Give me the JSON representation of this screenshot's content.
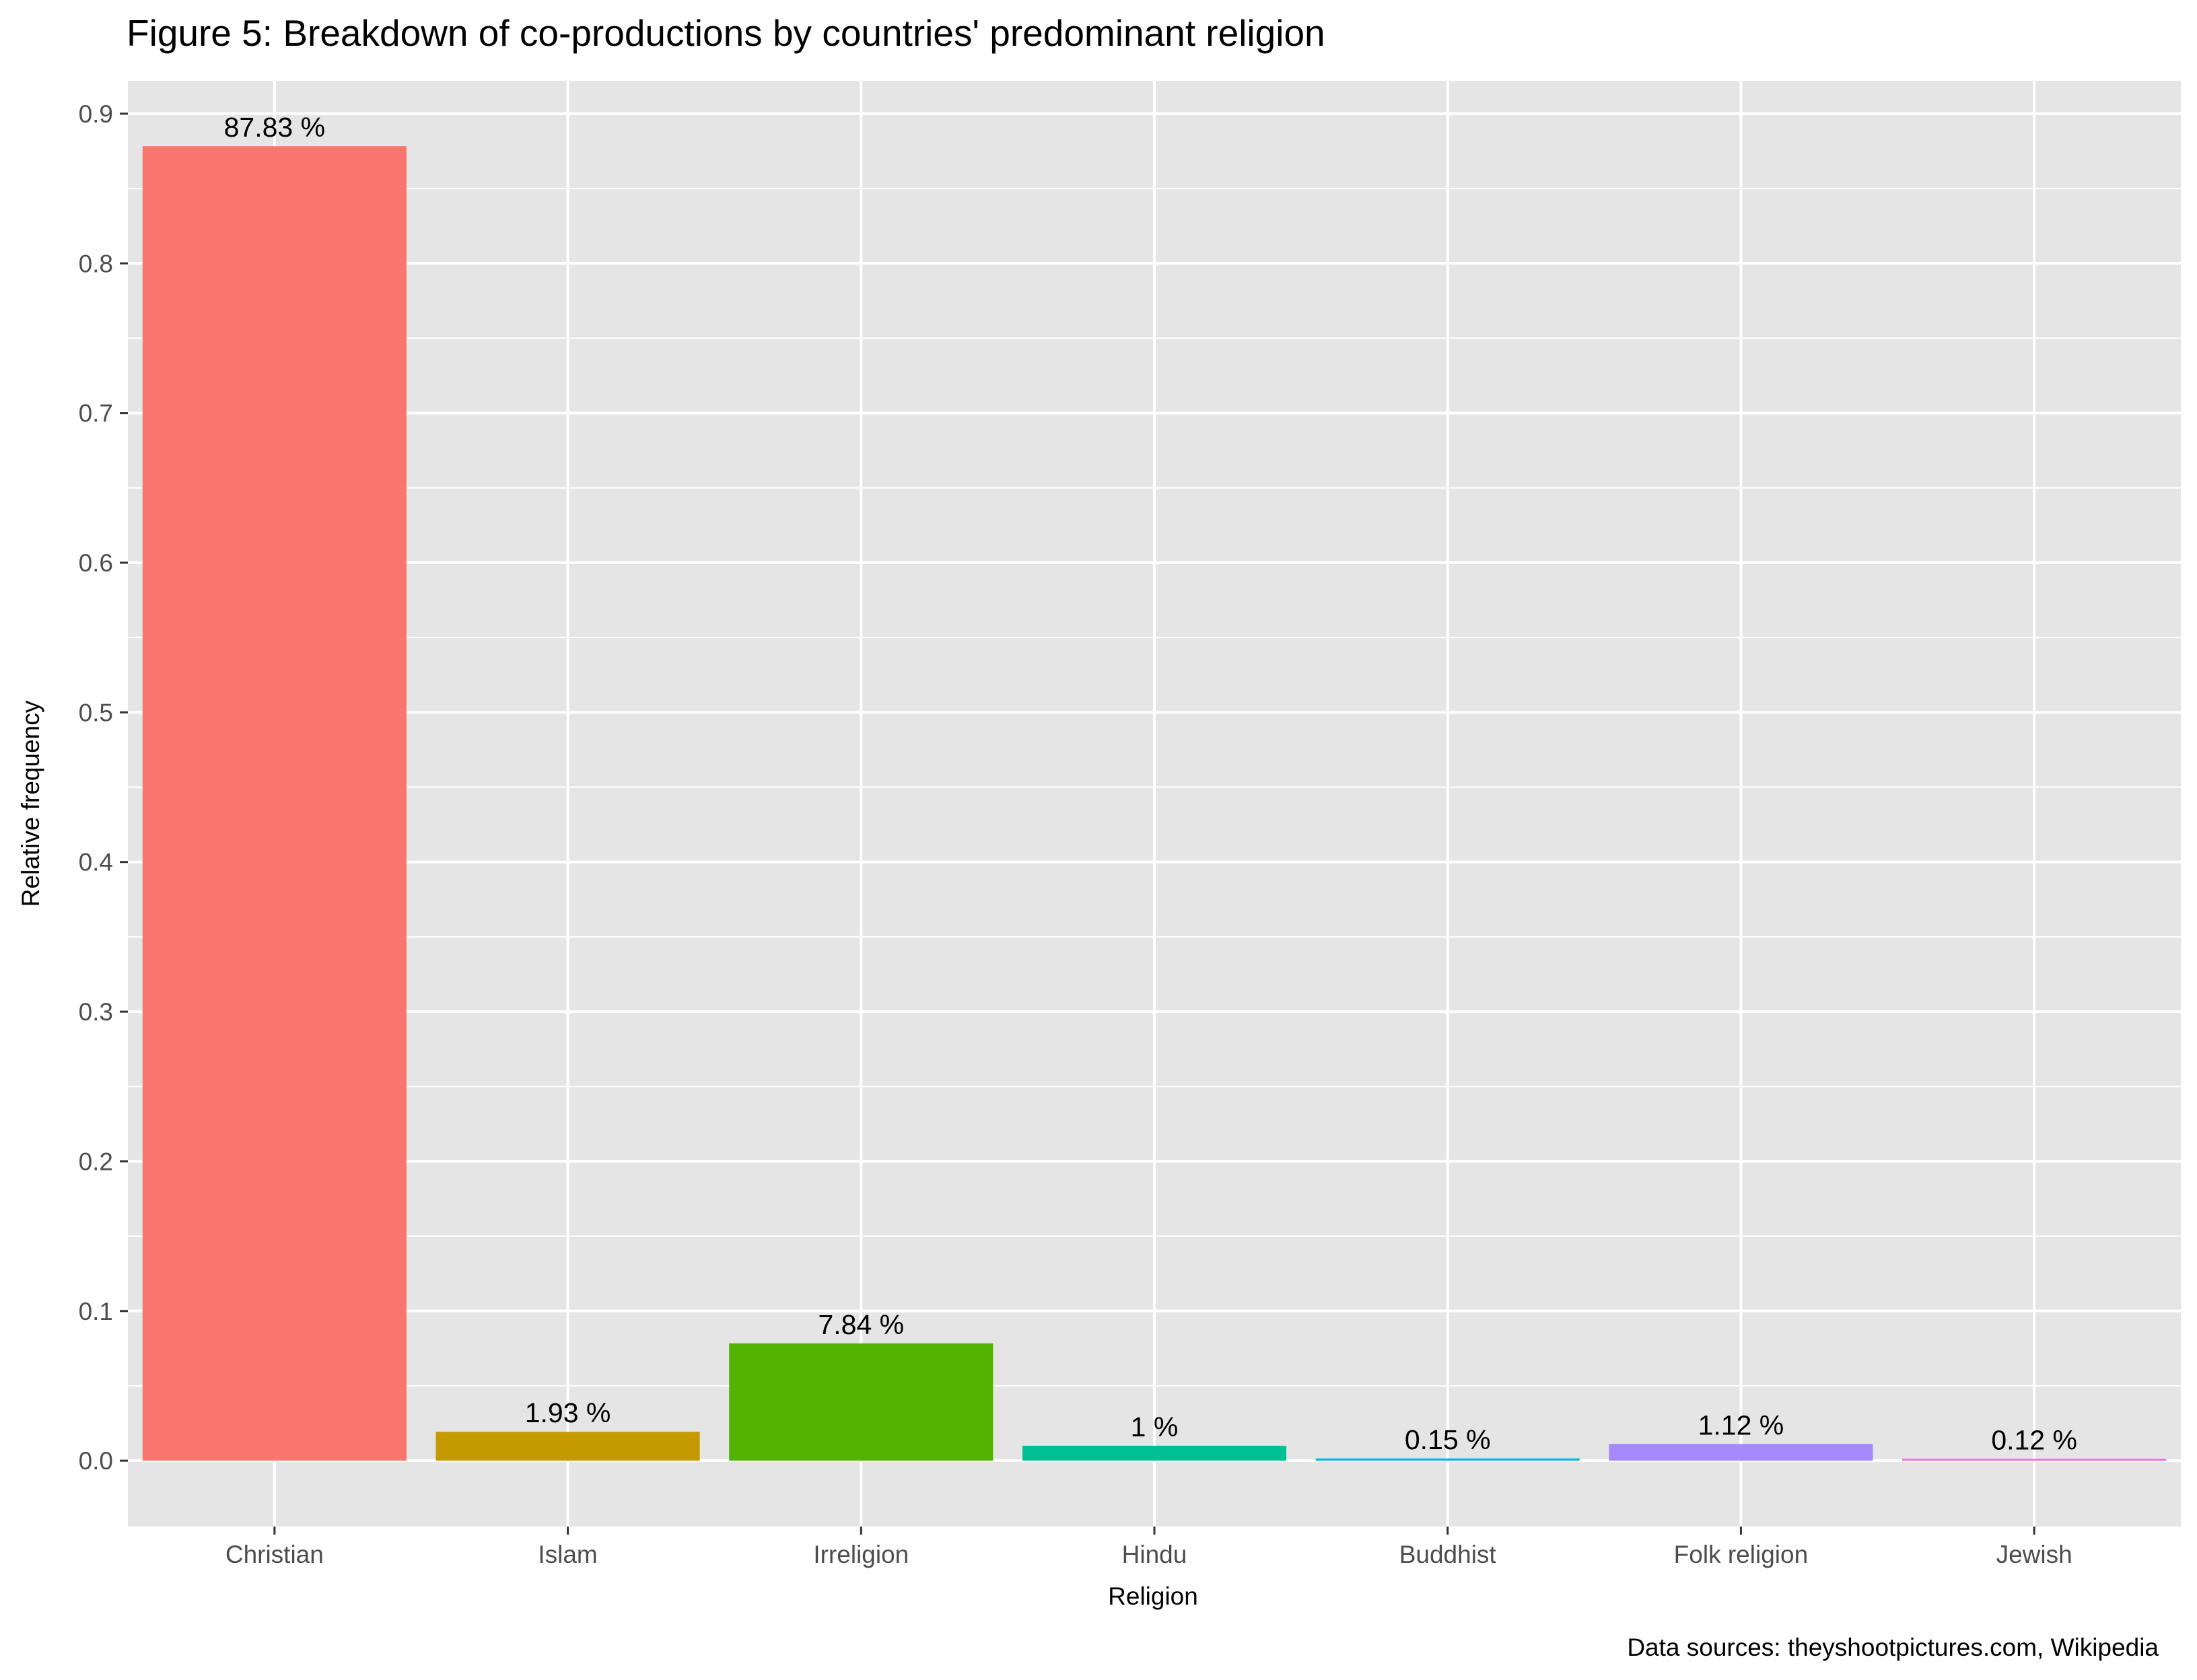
{
  "chart_data": {
    "type": "bar",
    "title": "Figure 5: Breakdown of co-productions by countries' predominant religion",
    "xlabel": "Religion",
    "ylabel": "Relative frequency",
    "caption": "Data sources: theyshootpictures.com, Wikipedia",
    "categories": [
      "Christian",
      "Islam",
      "Irreligion",
      "Hindu",
      "Buddhist",
      "Folk religion",
      "Jewish"
    ],
    "values": [
      0.8783,
      0.0193,
      0.0784,
      0.01,
      0.0015,
      0.0112,
      0.0012
    ],
    "data_labels": [
      "87.83 %",
      "1.93 %",
      "7.84 %",
      "1 %",
      "0.15 %",
      "1.12 %",
      "0.12 %"
    ],
    "colors": [
      "#F8766D",
      "#C49A00",
      "#53B400",
      "#00C094",
      "#00B6EB",
      "#A58AFF",
      "#FB61D7"
    ],
    "ylim": [
      -0.044,
      0.922
    ],
    "yticks": [
      0.0,
      0.1,
      0.2,
      0.3,
      0.4,
      0.5,
      0.6,
      0.7,
      0.8,
      0.9
    ],
    "ytick_labels": [
      "0.0",
      "0.1",
      "0.2",
      "0.3",
      "0.4",
      "0.5",
      "0.6",
      "0.7",
      "0.8",
      "0.9"
    ],
    "grid": true,
    "legend": "none",
    "panel_background": "#E5E5E5",
    "grid_color": "#FFFFFF"
  }
}
